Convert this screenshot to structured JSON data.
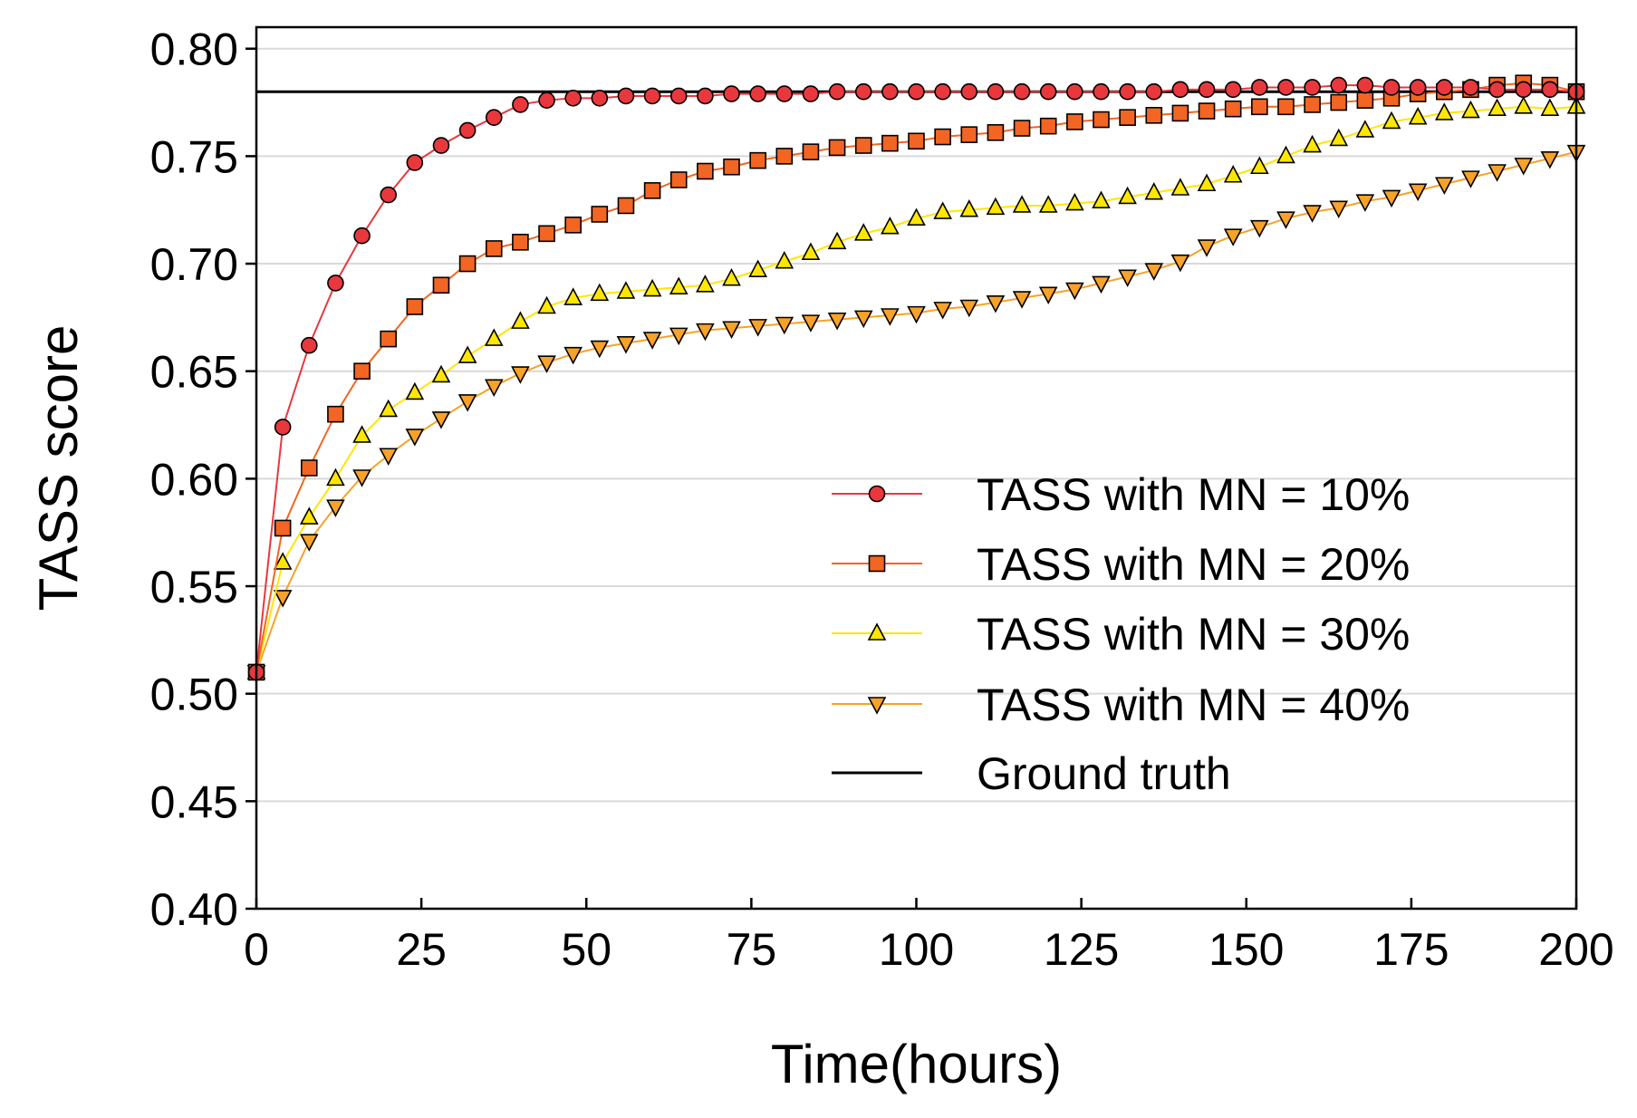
{
  "chart_data": {
    "type": "line",
    "title": "",
    "xlabel": "Time(hours)",
    "ylabel": "TASS score",
    "xlim": [
      0,
      200
    ],
    "ylim": [
      0.4,
      0.81
    ],
    "xticks": [
      0,
      25,
      50,
      75,
      100,
      125,
      150,
      175,
      200
    ],
    "xtick_labels": [
      "0",
      "25",
      "50",
      "75",
      "100",
      "125",
      "150",
      "175",
      "200"
    ],
    "yticks": [
      0.4,
      0.45,
      0.5,
      0.55,
      0.6,
      0.65,
      0.7,
      0.75,
      0.8
    ],
    "ytick_labels": [
      "0.40",
      "0.45",
      "0.50",
      "0.55",
      "0.60",
      "0.65",
      "0.70",
      "0.75",
      "0.80"
    ],
    "grid": "horizontal",
    "legend_position": "lower-right",
    "x": [
      0,
      4,
      8,
      12,
      16,
      20,
      24,
      28,
      32,
      36,
      40,
      44,
      48,
      52,
      56,
      60,
      64,
      68,
      72,
      76,
      80,
      84,
      88,
      92,
      96,
      100,
      104,
      108,
      112,
      116,
      120,
      124,
      128,
      132,
      136,
      140,
      144,
      148,
      152,
      156,
      160,
      164,
      168,
      172,
      176,
      180,
      184,
      188,
      192,
      196,
      200
    ],
    "series": [
      {
        "name": "TASS with MN = 10%",
        "color": "#e8383d",
        "marker": "circle",
        "values": [
          0.51,
          0.624,
          0.662,
          0.691,
          0.713,
          0.732,
          0.747,
          0.755,
          0.762,
          0.768,
          0.774,
          0.776,
          0.777,
          0.777,
          0.778,
          0.778,
          0.778,
          0.778,
          0.779,
          0.779,
          0.779,
          0.779,
          0.78,
          0.78,
          0.78,
          0.78,
          0.78,
          0.78,
          0.78,
          0.78,
          0.78,
          0.78,
          0.78,
          0.78,
          0.78,
          0.781,
          0.781,
          0.781,
          0.782,
          0.782,
          0.782,
          0.783,
          0.783,
          0.782,
          0.782,
          0.782,
          0.782,
          0.781,
          0.781,
          0.781,
          0.78
        ]
      },
      {
        "name": "TASS with MN = 20%",
        "color": "#f26522",
        "marker": "square",
        "values": [
          0.51,
          0.577,
          0.605,
          0.63,
          0.65,
          0.665,
          0.68,
          0.69,
          0.7,
          0.707,
          0.71,
          0.714,
          0.718,
          0.723,
          0.727,
          0.734,
          0.739,
          0.743,
          0.745,
          0.748,
          0.75,
          0.752,
          0.754,
          0.755,
          0.756,
          0.757,
          0.759,
          0.76,
          0.761,
          0.763,
          0.764,
          0.766,
          0.767,
          0.768,
          0.769,
          0.77,
          0.771,
          0.772,
          0.773,
          0.773,
          0.774,
          0.775,
          0.776,
          0.777,
          0.779,
          0.78,
          0.781,
          0.783,
          0.784,
          0.783,
          0.78
        ]
      },
      {
        "name": "TASS with MN = 30%",
        "color": "#ffe600",
        "marker": "triangle-up",
        "values": [
          0.51,
          0.561,
          0.582,
          0.6,
          0.62,
          0.632,
          0.64,
          0.648,
          0.657,
          0.665,
          0.673,
          0.68,
          0.684,
          0.686,
          0.687,
          0.688,
          0.689,
          0.69,
          0.693,
          0.697,
          0.701,
          0.705,
          0.71,
          0.714,
          0.717,
          0.721,
          0.724,
          0.725,
          0.726,
          0.727,
          0.727,
          0.728,
          0.729,
          0.731,
          0.733,
          0.735,
          0.737,
          0.741,
          0.745,
          0.75,
          0.755,
          0.758,
          0.762,
          0.766,
          0.768,
          0.77,
          0.771,
          0.772,
          0.773,
          0.772,
          0.773
        ]
      },
      {
        "name": "TASS with MN = 40%",
        "color": "#f7a228",
        "marker": "triangle-down",
        "values": [
          0.51,
          0.545,
          0.571,
          0.587,
          0.601,
          0.611,
          0.62,
          0.628,
          0.636,
          0.643,
          0.649,
          0.654,
          0.658,
          0.661,
          0.663,
          0.665,
          0.667,
          0.669,
          0.67,
          0.671,
          0.672,
          0.673,
          0.674,
          0.675,
          0.676,
          0.677,
          0.679,
          0.68,
          0.682,
          0.684,
          0.686,
          0.688,
          0.691,
          0.694,
          0.697,
          0.701,
          0.708,
          0.713,
          0.717,
          0.721,
          0.724,
          0.726,
          0.729,
          0.731,
          0.734,
          0.737,
          0.74,
          0.743,
          0.746,
          0.749,
          0.752
        ]
      }
    ],
    "reference_lines": [
      {
        "name": "Ground truth",
        "color": "#000000",
        "y": 0.78
      }
    ]
  }
}
